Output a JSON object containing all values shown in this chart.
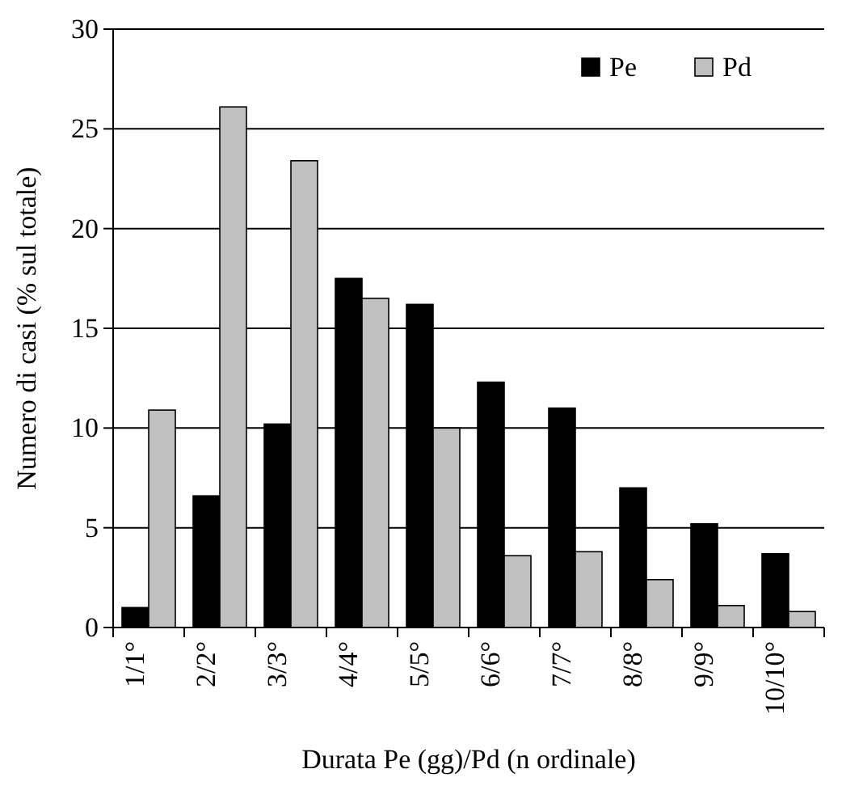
{
  "chart_data": {
    "type": "bar",
    "xlabel": "Durata Pe (gg)/Pd (n ordinale)",
    "ylabel": "Numero di casi (% sul totale)",
    "categories": [
      "1/1°",
      "2/2°",
      "3/3°",
      "4/4°",
      "5/5°",
      "6/6°",
      "7/7°",
      "8/8°",
      "9/9°",
      "10/10°"
    ],
    "series": [
      {
        "name": "Pe",
        "color": "#000000",
        "values": [
          1.0,
          6.6,
          10.2,
          17.5,
          16.2,
          12.3,
          11.0,
          7.0,
          5.2,
          3.7
        ]
      },
      {
        "name": "Pd",
        "color": "#c0c0c0",
        "values": [
          10.9,
          26.1,
          23.4,
          16.5,
          10.0,
          3.6,
          3.8,
          2.4,
          1.1,
          0.8
        ]
      }
    ],
    "ylim": [
      0,
      30
    ],
    "yticks": [
      0,
      5,
      10,
      15,
      20,
      25,
      30
    ],
    "grid": "y",
    "legend": "top right"
  }
}
